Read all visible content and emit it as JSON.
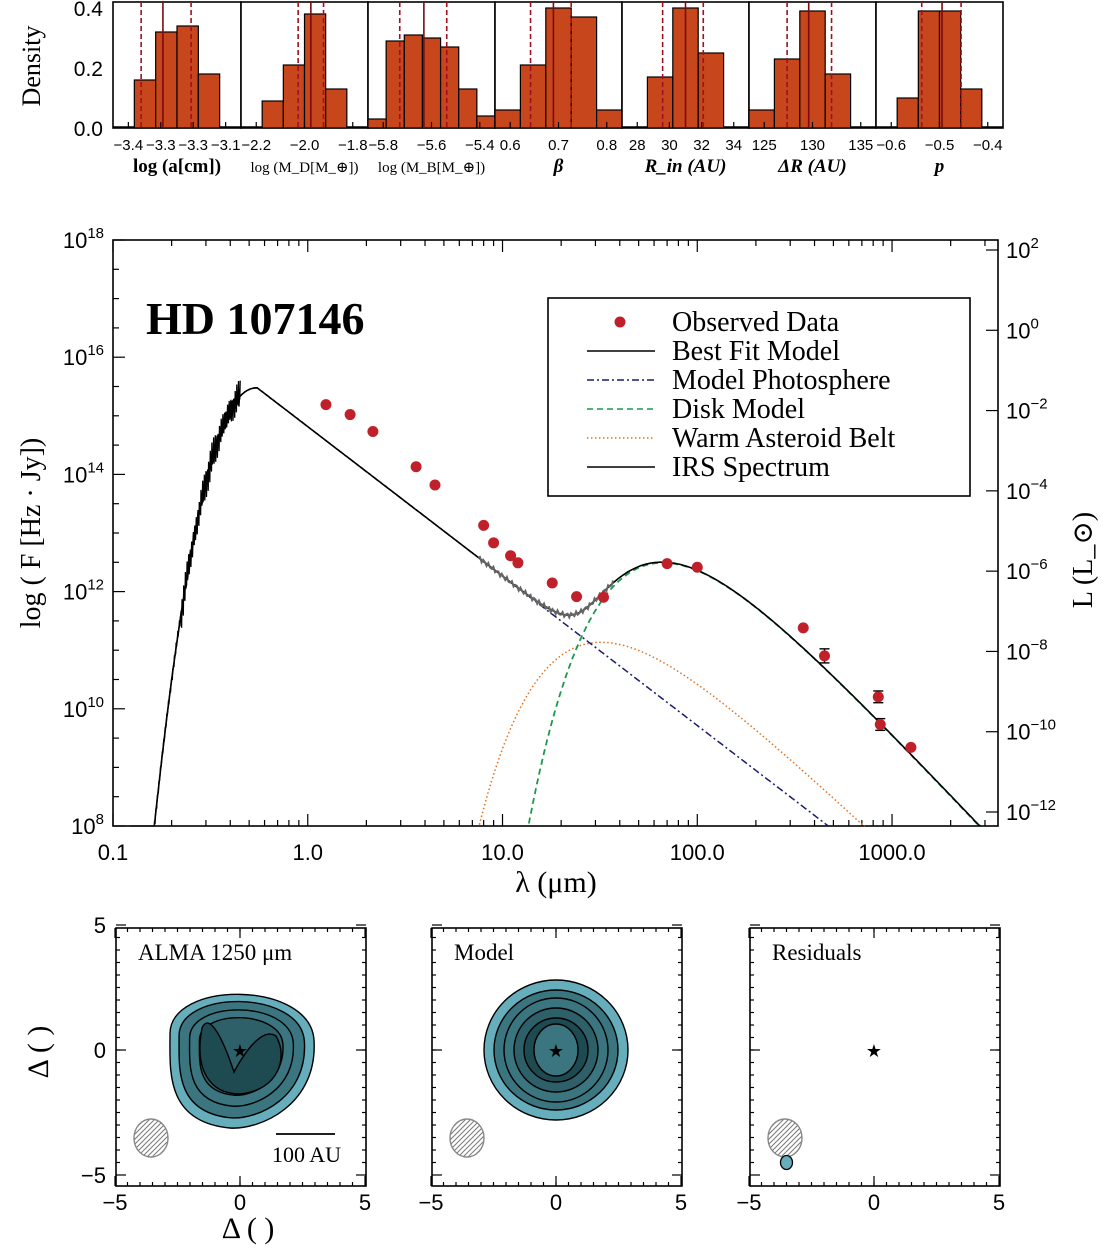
{
  "colors": {
    "bar": "#c8461c",
    "point": "#c0202a",
    "photosphere": "#1a1a6e",
    "disk": "#1a9a4a",
    "belt": "#e07020",
    "contour_light": "#66aebb",
    "contour_mid": "#3a7580",
    "contour_dark": "#1e4a52",
    "dashed_inner": "#a01020",
    "dashed_outer": "#7a0a14"
  },
  "chart_data": [
    {
      "type": "bar",
      "panel": "posterior histograms",
      "ylabel": "Density",
      "ylim": [
        0,
        0.42
      ],
      "yticks": [
        "0.0",
        "0.2",
        "0.4"
      ],
      "panels": [
        {
          "label": "log (a[cm])",
          "xticks": [
            "−3.4",
            "−3.3",
            "−3.3",
            "−3.1"
          ],
          "values": [
            0.0,
            0.16,
            0.32,
            0.34,
            0.18,
            0.0
          ],
          "lines": [
            0.22,
            0.39,
            0.61
          ]
        },
        {
          "label": "log (M_D[M_⊕])",
          "xticks": [
            "−2.2",
            "−2.0",
            "−1.8"
          ],
          "values": [
            0.0,
            0.09,
            0.21,
            0.38,
            0.13,
            0.0
          ],
          "lines": [
            0.45,
            0.55,
            0.65
          ]
        },
        {
          "label": "log (M_B[M_⊕])",
          "xticks": [
            "−5.8",
            "−5.6",
            "−5.4"
          ],
          "values": [
            0.03,
            0.29,
            0.31,
            0.3,
            0.27,
            0.13,
            0.04
          ],
          "lines": [
            0.25,
            0.44,
            0.62
          ]
        },
        {
          "label": "β",
          "xticks": [
            "0.6",
            "0.7",
            "0.8"
          ],
          "values": [
            0.06,
            0.21,
            0.4,
            0.37,
            0.06
          ],
          "lines": [
            0.28,
            0.46,
            0.6
          ]
        },
        {
          "label": "R_in (AU)",
          "xticks": [
            "28",
            "30",
            "32",
            "34"
          ],
          "values": [
            0.0,
            0.17,
            0.4,
            0.25,
            0.0
          ],
          "lines": [
            0.32,
            0.5,
            0.64
          ]
        },
        {
          "label": "ΔR (AU)",
          "xticks": [
            "125",
            "130",
            "135"
          ],
          "values": [
            0.06,
            0.23,
            0.39,
            0.18,
            0.0
          ],
          "lines": [
            0.3,
            0.47,
            0.65
          ]
        },
        {
          "label": "p",
          "xticks": [
            "−0.6",
            "−0.5",
            "−0.4"
          ],
          "values": [
            0.0,
            0.1,
            0.39,
            0.39,
            0.13,
            0.0
          ],
          "lines": [
            0.36,
            0.52,
            0.67
          ]
        }
      ]
    },
    {
      "type": "line",
      "panel": "SED",
      "title": "HD 107146",
      "xlabel": "λ (μm)",
      "ylabel": "log ( F [Hz · Jy])",
      "y2label": "L (L_⊙)",
      "xscale": "log",
      "yscale": "log",
      "xlim": [
        0.1,
        3500
      ],
      "ylim": [
        100000000.0,
        1e+18
      ],
      "xticks": [
        "0.1",
        "1.0",
        "10.0",
        "100.0",
        "1000.0"
      ],
      "yticks": [
        "10^8",
        "10^10",
        "10^12",
        "10^14",
        "10^16",
        "10^18"
      ],
      "y2ticks": [
        "10^−12",
        "10^−10",
        "10^−8",
        "10^−6",
        "10^−4",
        "10^−2",
        "10^0",
        "10^2"
      ],
      "legend": [
        "Observed Data",
        "Best Fit Model",
        "Model Photosphere",
        "Disk Model",
        "Warm Asteroid Belt",
        "IRS Spectrum"
      ],
      "legend_position": "top-right",
      "observed": [
        {
          "x": 1.24,
          "y": 1550000000000000.0
        },
        {
          "x": 1.65,
          "y": 1050000000000000.0
        },
        {
          "x": 2.16,
          "y": 540000000000000.0
        },
        {
          "x": 3.6,
          "y": 135000000000000.0
        },
        {
          "x": 4.5,
          "y": 66000000000000.0
        },
        {
          "x": 8.0,
          "y": 13500000000000.0
        },
        {
          "x": 9.0,
          "y": 6800000000000.0
        },
        {
          "x": 11.0,
          "y": 4100000000000.0
        },
        {
          "x": 12.0,
          "y": 3100000000000.0
        },
        {
          "x": 18.0,
          "y": 1400000000000.0
        },
        {
          "x": 24.0,
          "y": 820000000000.0
        },
        {
          "x": 33.0,
          "y": 800000000000.0
        },
        {
          "x": 70.0,
          "y": 3000000000000.0
        },
        {
          "x": 100.0,
          "y": 2600000000000.0
        },
        {
          "x": 350.0,
          "y": 240000000000.0
        },
        {
          "x": 450.0,
          "y": 80000000000.0
        },
        {
          "x": 850.0,
          "y": 16000000000.0
        },
        {
          "x": 870.0,
          "y": 5400000000.0
        },
        {
          "x": 1250.0,
          "y": 2200000000.0
        }
      ]
    },
    {
      "type": "heatmap",
      "panel": "images",
      "xlabel": "Δ ( )",
      "ylabel": "Δ ( )",
      "xticks": [
        "5",
        "0",
        "−5"
      ],
      "yticks": [
        "5",
        "0",
        "−5"
      ],
      "subpanels": [
        "ALMA 1250 μm",
        "Model",
        "Residuals"
      ],
      "scalebar": "100 AU"
    }
  ]
}
